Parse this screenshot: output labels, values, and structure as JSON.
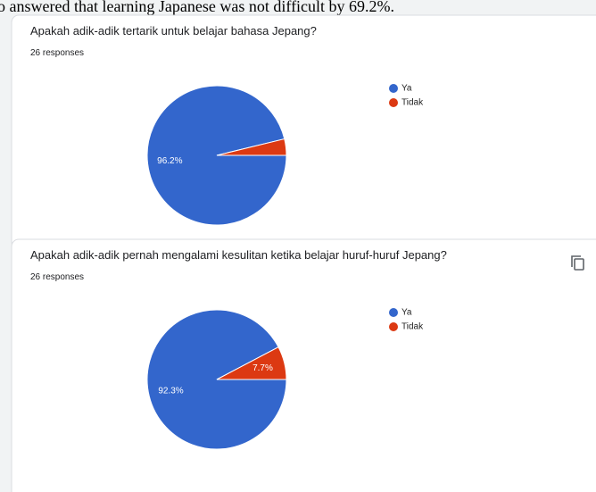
{
  "caption": "o answered that learning Japanese was not difficult by 69.2%.",
  "chart_data": [
    {
      "type": "pie",
      "title": "Apakah adik-adik tertarik untuk belajar bahasa Jepang?",
      "subtitle": "26 responses",
      "categories": [
        "Ya",
        "Tidak"
      ],
      "values": [
        96.2,
        3.8
      ],
      "value_labels": [
        "96.2%",
        null
      ],
      "colors": [
        "#3366cc",
        "#dc3912"
      ]
    },
    {
      "type": "pie",
      "title": "Apakah adik-adik pernah mengalami kesulitan ketika belajar huruf-huruf Jepang?",
      "subtitle": "26 responses",
      "categories": [
        "Ya",
        "Tidak"
      ],
      "values": [
        92.3,
        7.7
      ],
      "value_labels": [
        "92.3%",
        "7.7%"
      ],
      "colors": [
        "#3366cc",
        "#dc3912"
      ]
    }
  ]
}
